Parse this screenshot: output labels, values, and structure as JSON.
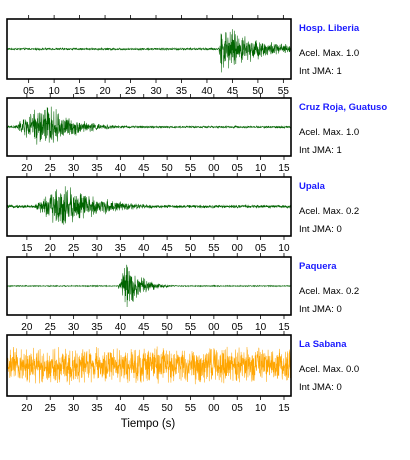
{
  "chart_data": {
    "type": "line",
    "xlabel": "Tiempo (s)",
    "panels": [
      {
        "station": "Hosp. Liberia",
        "accel_label": "Acel. Max. 1.0",
        "intensity_label": "Int JMA: 1",
        "color": "#006400",
        "x_ticks": [
          "05",
          "10",
          "15",
          "20",
          "25",
          "30",
          "35",
          "40",
          "45",
          "50",
          "55"
        ],
        "x_range": [
          0,
          59
        ],
        "x_labels_on_top": false,
        "signal": {
          "baseline": 0.04,
          "event_start": 44,
          "event_peak": 44.5,
          "event_end": 59,
          "peak_amplitude": 0.92,
          "decay": 0.12
        }
      },
      {
        "station": "Cruz Roja, Guatuso",
        "accel_label": "Acel. Max. 1.0",
        "intensity_label": "Int JMA: 1",
        "color": "#006400",
        "x_ticks": [
          "20",
          "25",
          "30",
          "35",
          "40",
          "45",
          "50",
          "55",
          "00",
          "05",
          "10",
          "15"
        ],
        "x_range": [
          17,
          76
        ],
        "x_labels_on_top": false,
        "signal": {
          "baseline": 0.04,
          "event_start": 18,
          "event_peak": 25,
          "event_end": 50,
          "peak_amplitude": 0.95,
          "decay": 0.18
        }
      },
      {
        "station": "Upala",
        "accel_label": "Acel. Max. 0.2",
        "intensity_label": "Int JMA: 0",
        "color": "#006400",
        "x_ticks": [
          "15",
          "20",
          "25",
          "30",
          "35",
          "40",
          "45",
          "50",
          "55",
          "00",
          "05",
          "10"
        ],
        "x_range": [
          15,
          74
        ],
        "x_labels_on_top": false,
        "signal": {
          "baseline": 0.06,
          "event_start": 20,
          "event_peak": 27,
          "event_end": 62,
          "peak_amplitude": 0.9,
          "decay": 0.14
        }
      },
      {
        "station": "Paquera",
        "accel_label": "Acel. Max. 0.2",
        "intensity_label": "Int JMA: 0",
        "color": "#006400",
        "x_ticks": [
          "20",
          "25",
          "30",
          "35",
          "40",
          "45",
          "50",
          "55",
          "00",
          "05",
          "10",
          "15"
        ],
        "x_range": [
          17,
          76
        ],
        "x_labels_on_top": false,
        "signal": {
          "baseline": 0.02,
          "event_start": 40,
          "event_peak": 42,
          "event_end": 52,
          "peak_amplitude": 0.98,
          "decay": 0.35
        }
      },
      {
        "station": "La Sabana",
        "accel_label": "Acel. Max. 0.0",
        "intensity_label": "Int JMA: 0",
        "color": "#FFA500",
        "x_ticks": [
          "20",
          "25",
          "30",
          "35",
          "40",
          "45",
          "50",
          "55",
          "00",
          "05",
          "10",
          "15"
        ],
        "x_range": [
          17,
          76
        ],
        "x_labels_on_top": false,
        "signal": {
          "baseline": 0.65,
          "event_start": 17,
          "event_peak": 17,
          "event_end": 17,
          "peak_amplitude": 0.0,
          "decay": 0.1
        }
      }
    ]
  }
}
